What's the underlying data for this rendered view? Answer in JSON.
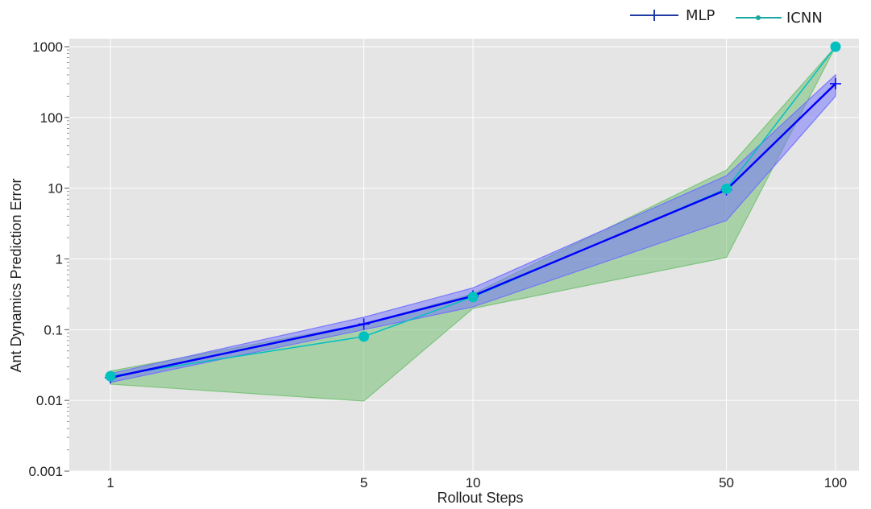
{
  "chart_data": {
    "type": "line",
    "xscale": "log",
    "yscale": "log",
    "xlabel": "Rollout Steps",
    "ylabel": "Ant Dynamics Prediction Error",
    "x": [
      1,
      5,
      10,
      50,
      100
    ],
    "x_ticks": [
      1,
      5,
      10,
      50,
      100
    ],
    "x_tick_labels": [
      "1",
      "5",
      "10",
      "50",
      "100"
    ],
    "xlim": [
      0.77,
      116
    ],
    "y_ticks": [
      0.001,
      0.01,
      0.1,
      1,
      10,
      100,
      1000
    ],
    "y_tick_labels": [
      "0.001",
      "0.01",
      "0.1",
      "1",
      "10",
      "100",
      "1000"
    ],
    "ylim": [
      0.001,
      1300
    ],
    "grid": true,
    "background": "#e5e5e5",
    "legend_position": "top-right",
    "series": [
      {
        "name": "MLP",
        "color": "#0000ff",
        "marker": "plus",
        "values": [
          0.021,
          0.12,
          0.3,
          9.5,
          300
        ],
        "band": {
          "color": "#6f6fff",
          "lower": [
            0.018,
            0.1,
            0.21,
            3.5,
            200
          ],
          "upper": [
            0.024,
            0.15,
            0.39,
            15,
            400
          ]
        }
      },
      {
        "name": "ICNN",
        "color": "#00c0c0",
        "marker": "circle",
        "values": [
          0.022,
          0.08,
          0.29,
          9.8,
          1000
        ],
        "band": {
          "color": "#76c176",
          "lower": [
            0.017,
            0.0098,
            0.2,
            1.05,
            1000
          ],
          "upper": [
            0.026,
            0.12,
            0.32,
            18,
            1000
          ]
        }
      }
    ]
  },
  "legend": {
    "line_color": "#1f3aa0",
    "icnn_line_color": "#1aa9a0"
  }
}
